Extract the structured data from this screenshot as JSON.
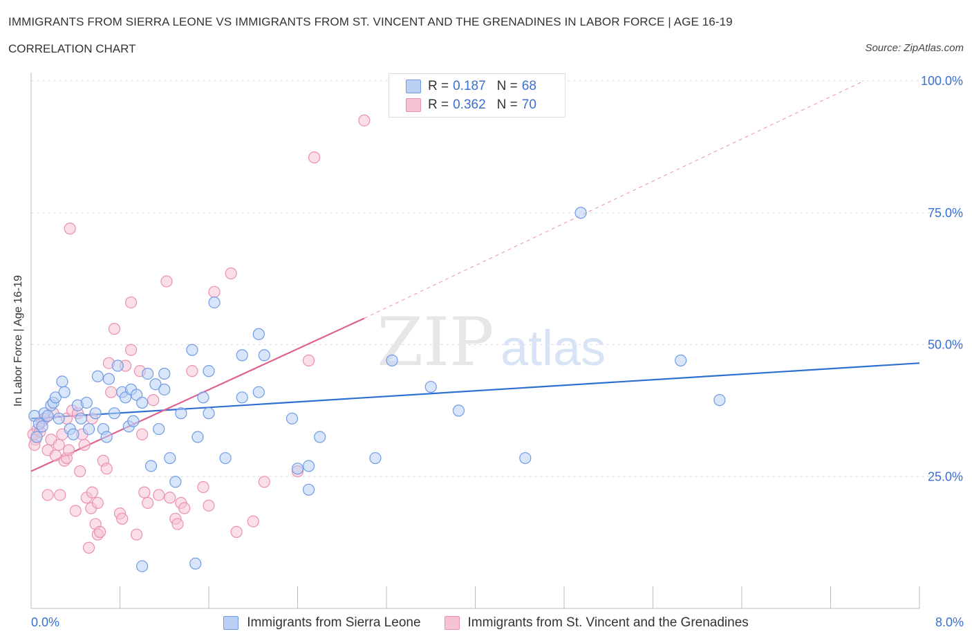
{
  "title": "IMMIGRANTS FROM SIERRA LEONE VS IMMIGRANTS FROM ST. VINCENT AND THE GRENADINES IN LABOR FORCE | AGE 16-19",
  "subtitle": "CORRELATION CHART",
  "source": "Source: ZipAtlas.com",
  "watermark": {
    "zip": "ZIP",
    "atlas": "atlas"
  },
  "colors": {
    "blue": "#6f9be6",
    "blue_fill": "#b9d0f4",
    "blue_line": "#2f6fd0",
    "pink": "#ec8fae",
    "pink_fill": "#f6c3d5",
    "pink_line": "#e06090",
    "grid": "#dddddd",
    "axis_text": "#3a6fd0"
  },
  "legend": {
    "rows": [
      {
        "r_label": "R =",
        "r_value": "0.187",
        "n_label": "N =",
        "n_value": "68"
      },
      {
        "r_label": "R =",
        "r_value": "0.362",
        "n_label": "N =",
        "n_value": "70"
      }
    ]
  },
  "bottom_legend": [
    "Immigrants from Sierra Leone",
    "Immigrants from St. Vincent and the Grenadines"
  ],
  "chart_data": {
    "type": "scatter",
    "title": "IMMIGRANTS FROM SIERRA LEONE VS IMMIGRANTS FROM ST. VINCENT AND THE GRENADINES IN LABOR FORCE | AGE 16-19",
    "xlabel": "",
    "ylabel": "In Labor Force | Age 16-19",
    "xlim": [
      0,
      8
    ],
    "ylim": [
      0,
      100
    ],
    "x_tick_labels": {
      "min": "0.0%",
      "max": "8.0%"
    },
    "y_ticks": [
      {
        "value": 25,
        "label": "25.0%"
      },
      {
        "value": 50,
        "label": "50.0%"
      },
      {
        "value": 75,
        "label": "75.0%"
      },
      {
        "value": 100,
        "label": "100.0%"
      }
    ],
    "grid": true,
    "series": [
      {
        "name": "Immigrants from Sierra Leone",
        "color": "blue",
        "R": 0.187,
        "N": 68,
        "trend": {
          "x0": 0.0,
          "y0": 36.0,
          "x1": 8.0,
          "y1": 46.5,
          "dashed_to": null
        },
        "points": [
          [
            0.03,
            36.5
          ],
          [
            0.05,
            32.5
          ],
          [
            0.07,
            35.0
          ],
          [
            0.1,
            34.5
          ],
          [
            0.12,
            37.0
          ],
          [
            0.15,
            36.5
          ],
          [
            0.18,
            38.5
          ],
          [
            0.2,
            39.0
          ],
          [
            0.22,
            40.0
          ],
          [
            0.25,
            36.0
          ],
          [
            0.28,
            43.0
          ],
          [
            0.3,
            41.0
          ],
          [
            0.35,
            34.0
          ],
          [
            0.38,
            33.0
          ],
          [
            0.42,
            38.5
          ],
          [
            0.45,
            36.0
          ],
          [
            0.5,
            39.0
          ],
          [
            0.52,
            34.0
          ],
          [
            0.58,
            37.0
          ],
          [
            0.6,
            44.0
          ],
          [
            0.65,
            34.0
          ],
          [
            0.68,
            32.5
          ],
          [
            0.7,
            43.5
          ],
          [
            0.75,
            37.0
          ],
          [
            0.78,
            46.0
          ],
          [
            0.82,
            41.0
          ],
          [
            0.85,
            40.0
          ],
          [
            0.88,
            34.5
          ],
          [
            0.9,
            41.5
          ],
          [
            0.92,
            35.5
          ],
          [
            0.95,
            40.5
          ],
          [
            1.0,
            39.0
          ],
          [
            1.05,
            44.5
          ],
          [
            1.08,
            27.0
          ],
          [
            1.12,
            42.5
          ],
          [
            1.15,
            34.0
          ],
          [
            1.2,
            44.5
          ],
          [
            1.2,
            41.5
          ],
          [
            1.25,
            28.5
          ],
          [
            1.3,
            24.0
          ],
          [
            1.35,
            37.0
          ],
          [
            1.45,
            49.0
          ],
          [
            1.5,
            32.5
          ],
          [
            1.55,
            40.0
          ],
          [
            1.6,
            45.0
          ],
          [
            1.6,
            37.0
          ],
          [
            1.65,
            58.0
          ],
          [
            1.75,
            28.5
          ],
          [
            1.9,
            40.0
          ],
          [
            1.9,
            48.0
          ],
          [
            2.05,
            52.0
          ],
          [
            2.05,
            41.0
          ],
          [
            2.1,
            48.0
          ],
          [
            2.35,
            36.0
          ],
          [
            2.4,
            26.5
          ],
          [
            2.5,
            27.0
          ],
          [
            2.5,
            22.5
          ],
          [
            2.6,
            32.5
          ],
          [
            3.1,
            28.5
          ],
          [
            3.25,
            47.0
          ],
          [
            3.6,
            42.0
          ],
          [
            3.85,
            37.5
          ],
          [
            4.45,
            28.5
          ],
          [
            4.95,
            75.0
          ],
          [
            5.85,
            47.0
          ],
          [
            6.2,
            39.5
          ],
          [
            1.0,
            8.0
          ],
          [
            1.48,
            8.5
          ]
        ]
      },
      {
        "name": "Immigrants from St. Vincent and the Grenadines",
        "color": "pink",
        "R": 0.362,
        "N": 70,
        "trend": {
          "x0": 0.0,
          "y0": 26.0,
          "x1": 3.0,
          "y1": 55.0,
          "dashed_to": [
            7.5,
            100.0
          ]
        },
        "points": [
          [
            0.02,
            33.0
          ],
          [
            0.04,
            32.0
          ],
          [
            0.06,
            34.0
          ],
          [
            0.08,
            33.5
          ],
          [
            0.1,
            35.5
          ],
          [
            0.12,
            36.0
          ],
          [
            0.15,
            21.5
          ],
          [
            0.15,
            30.0
          ],
          [
            0.18,
            32.0
          ],
          [
            0.2,
            37.0
          ],
          [
            0.22,
            29.0
          ],
          [
            0.25,
            31.0
          ],
          [
            0.26,
            21.5
          ],
          [
            0.28,
            33.0
          ],
          [
            0.3,
            28.0
          ],
          [
            0.32,
            28.5
          ],
          [
            0.32,
            36.0
          ],
          [
            0.34,
            30.0
          ],
          [
            0.35,
            72.0
          ],
          [
            0.37,
            37.5
          ],
          [
            0.4,
            18.5
          ],
          [
            0.42,
            37.0
          ],
          [
            0.44,
            26.0
          ],
          [
            0.46,
            33.0
          ],
          [
            0.48,
            31.0
          ],
          [
            0.5,
            21.0
          ],
          [
            0.52,
            11.5
          ],
          [
            0.54,
            19.0
          ],
          [
            0.55,
            22.0
          ],
          [
            0.55,
            36.0
          ],
          [
            0.58,
            16.0
          ],
          [
            0.6,
            20.0
          ],
          [
            0.6,
            14.0
          ],
          [
            0.62,
            14.5
          ],
          [
            0.65,
            28.0
          ],
          [
            0.68,
            26.5
          ],
          [
            0.7,
            46.5
          ],
          [
            0.72,
            41.0
          ],
          [
            0.75,
            53.0
          ],
          [
            0.8,
            18.0
          ],
          [
            0.82,
            17.0
          ],
          [
            0.85,
            46.0
          ],
          [
            0.9,
            49.0
          ],
          [
            0.9,
            58.0
          ],
          [
            0.95,
            14.0
          ],
          [
            0.98,
            45.0
          ],
          [
            1.0,
            33.0
          ],
          [
            1.02,
            22.0
          ],
          [
            1.05,
            20.0
          ],
          [
            1.1,
            39.5
          ],
          [
            1.15,
            21.5
          ],
          [
            1.22,
            62.0
          ],
          [
            1.25,
            21.0
          ],
          [
            1.3,
            17.0
          ],
          [
            1.32,
            16.0
          ],
          [
            1.35,
            20.0
          ],
          [
            1.38,
            19.0
          ],
          [
            1.45,
            45.0
          ],
          [
            1.55,
            23.0
          ],
          [
            1.6,
            19.5
          ],
          [
            1.65,
            60.0
          ],
          [
            1.8,
            63.5
          ],
          [
            1.85,
            14.5
          ],
          [
            2.0,
            16.5
          ],
          [
            2.1,
            24.0
          ],
          [
            2.4,
            26.0
          ],
          [
            2.5,
            47.0
          ],
          [
            2.55,
            85.5
          ],
          [
            3.0,
            92.5
          ],
          [
            0.03,
            31.0
          ]
        ]
      }
    ]
  }
}
